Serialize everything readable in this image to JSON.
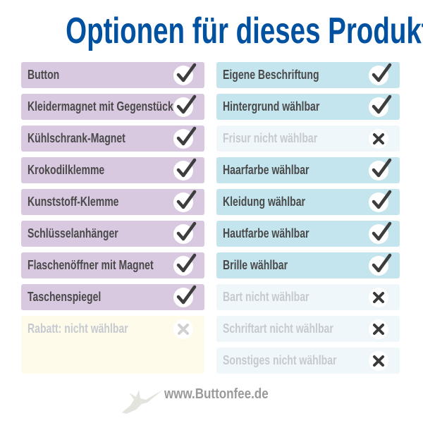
{
  "title": "Optionen für dieses Produkt:",
  "colors": {
    "title": "#0052a0",
    "product_bg": "#d8c8e0",
    "option_bg": "#c4e4ee",
    "unavailable_bg": "#eff7fb",
    "discount_bg": "#fffbeb"
  },
  "products": [
    {
      "label": "Button",
      "available": true
    },
    {
      "label": "Kleidermagnet mit Gegenstück",
      "available": true
    },
    {
      "label": "Kühlschrank-Magnet",
      "available": true
    },
    {
      "label": "Krokodilklemme",
      "available": true
    },
    {
      "label": "Kunststoff-Klemme",
      "available": true
    },
    {
      "label": "Schlüsselanhänger",
      "available": true
    },
    {
      "label": "Flaschenöffner mit Magnet",
      "available": true
    },
    {
      "label": "Taschenspiegel",
      "available": true
    }
  ],
  "discount": {
    "label": "Rabatt: nicht wählbar",
    "available": false
  },
  "options": [
    {
      "label": "Eigene Beschriftung",
      "available": true
    },
    {
      "label": "Hintergrund wählbar",
      "available": true
    },
    {
      "label": "Frisur nicht wählbar",
      "available": false
    },
    {
      "label": "Haarfarbe wählbar",
      "available": true
    },
    {
      "label": "Kleidung wählbar",
      "available": true
    },
    {
      "label": "Hautfarbe wählbar",
      "available": true
    },
    {
      "label": "Brille wählbar",
      "available": true
    },
    {
      "label": "Bart nicht wählbar",
      "available": false
    },
    {
      "label": "Schriftart nicht wählbar",
      "available": false
    },
    {
      "label": "Sonstiges nicht wählbar",
      "available": false
    }
  ],
  "footer": {
    "url": "www.Buttonfee.de",
    "logo": "fairy-logo"
  }
}
